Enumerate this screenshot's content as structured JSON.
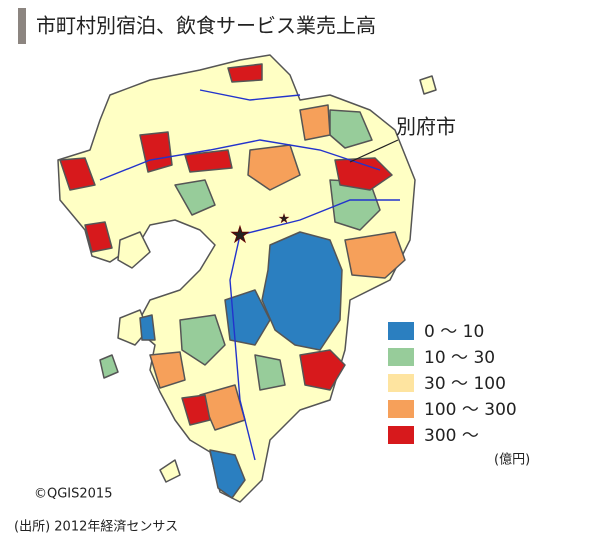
{
  "title": "市町村別宿泊、飲食サービス業売上高",
  "annotation": "別府市",
  "legend": {
    "items": [
      {
        "label": "0 ～ 10",
        "color": "#2b7fc0"
      },
      {
        "label": "10 ～ 30",
        "color": "#97cc9a"
      },
      {
        "label": "30 ～ 100",
        "color": "#fee4a0"
      },
      {
        "label": "100 ～ 300",
        "color": "#f6a05a"
      },
      {
        "label": "300 ～",
        "color": "#d7191c"
      }
    ],
    "unit": "(億円)"
  },
  "credit": "©QGIS2015",
  "source": "(出所) 2012年経済センサス"
}
